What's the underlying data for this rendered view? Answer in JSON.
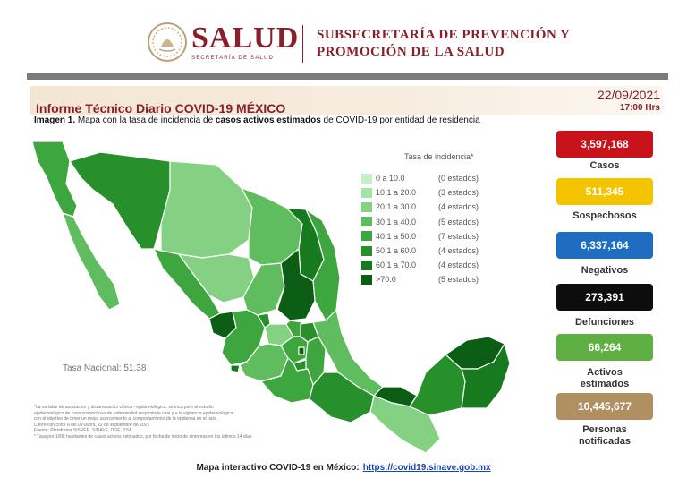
{
  "header": {
    "brand": "SALUD",
    "brand_sub": "SECRETARÍA DE SALUD",
    "office_line1": "SUBSECRETARÍA DE PREVENCIÓN Y",
    "office_line2": "PROMOCIÓN DE LA SALUD"
  },
  "report": {
    "title": "Informe Técnico Diario COVID-19 MÉXICO",
    "date": "22/09/2021",
    "time": "17:00 Hrs",
    "caption_prefix": "Imagen 1.",
    "caption_mid": " Mapa con la tasa de incidencia de ",
    "caption_bold": "casos activos estimados",
    "caption_suffix": " de COVID-19 por entidad de residencia"
  },
  "legend": {
    "title": "Tasa de incidencia*",
    "rows": [
      {
        "range": "0   a  10.0",
        "count": "(0 estados)",
        "color": "#c6efc6"
      },
      {
        "range": "10.1  a  20.0",
        "count": "(3 estados)",
        "color": "#a6e3a6"
      },
      {
        "range": "20.1  a  30.0",
        "count": "(4 estados)",
        "color": "#84d184"
      },
      {
        "range": "30.1  a  40.0",
        "count": "(5 estados)",
        "color": "#5fbd5f"
      },
      {
        "range": "40.1  a  50.0",
        "count": "(7 estados)",
        "color": "#3ea63e"
      },
      {
        "range": "50.1  a  60.0",
        "count": "(4 estados)",
        "color": "#27902b"
      },
      {
        "range": "60.1  a  70.0",
        "count": "(4 estados)",
        "color": "#177a1f"
      },
      {
        "range": ">70.0",
        "count": "(5 estados)",
        "color": "#0b5e14"
      }
    ]
  },
  "tasa_nacional": "Tasa Nacional: 51.38",
  "notes": [
    "*La variable de asociación y dictaminación clínica - epidemiológica, se incorporó al estudio",
    "epidemiológico de caso sospechoso de enfermedad respiratoria viral y a la vigilancia epidemiológica",
    "con el objetivo de tener un mejor acercamiento al comportamiento de la epidemia en el país.",
    "Cierre con corte a las 09:00hrs, 22 de septiembre de 2021",
    "Fuente: Plataforma SISVER, SINAVE, DGE, SSA",
    "* Tasa por 100k habitantes de casos activos estimados, por fecha de inicio de síntomas en los últimos 14 días"
  ],
  "stats": [
    {
      "value": "3,597,168",
      "label": "Casos",
      "color": "#c8131b"
    },
    {
      "value": "511,345",
      "label": "Sospechosos",
      "color": "#f5c400"
    },
    {
      "value": "6,337,164",
      "label": "Negativos",
      "color": "#1f6dc1"
    },
    {
      "value": "273,391",
      "label": "Defunciones",
      "color": "#0d0d0d"
    },
    {
      "value": "66,264",
      "label": "Activos estimados",
      "color": "#5fb042"
    },
    {
      "value": "10,445,677",
      "label": "Personas notificadas",
      "color": "#b09061"
    }
  ],
  "footer": {
    "text": "Mapa interactivo COVID-19 en México:",
    "link": "https://covid19.sinave.gob.mx"
  },
  "colors": {
    "brand": "#8a1f2c",
    "map_stroke": "#ffffff"
  }
}
